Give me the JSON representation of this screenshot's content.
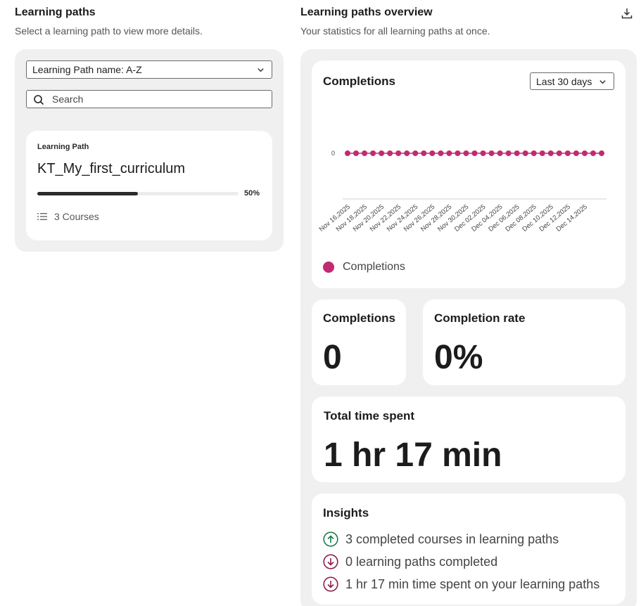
{
  "left": {
    "title": "Learning paths",
    "subtitle": "Select a learning path to view more details.",
    "sort_value": "Learning Path name: A-Z",
    "search_placeholder": "Search",
    "card": {
      "eyebrow": "Learning Path",
      "name": "KT_My_first_curriculum",
      "progress_pct": 50,
      "progress_label": "50%",
      "courses": "3 Courses"
    }
  },
  "right": {
    "title": "Learning paths overview",
    "subtitle": "Your statistics for all learning paths at once.",
    "completions": {
      "title": "Completions",
      "range": "Last 30 days",
      "legend": "Completions"
    },
    "count": {
      "title": "Completions",
      "value": "0"
    },
    "rate": {
      "title": "Completion rate",
      "value": "0%"
    },
    "time": {
      "title": "Total time spent",
      "value": "1 hr 17 min"
    },
    "insights": {
      "title": "Insights",
      "items": [
        {
          "text": "3 completed courses in learning paths",
          "direction": "up",
          "color": "#1d7a4a"
        },
        {
          "text": "0 learning paths completed",
          "direction": "down",
          "color": "#8a1f4e"
        },
        {
          "text": "1 hr 17 min time spent on your learning paths",
          "direction": "down",
          "color": "#8a1f4e"
        }
      ]
    }
  },
  "chart_data": {
    "type": "line",
    "series": [
      {
        "name": "Completions",
        "color": "#c22a71",
        "values": [
          0,
          0,
          0,
          0,
          0,
          0,
          0,
          0,
          0,
          0,
          0,
          0,
          0,
          0,
          0,
          0,
          0,
          0,
          0,
          0,
          0,
          0,
          0,
          0,
          0,
          0,
          0,
          0,
          0,
          0,
          0
        ]
      }
    ],
    "x": [
      "Nov 16,2025",
      "Nov 17,2025",
      "Nov 18,2025",
      "Nov 19,2025",
      "Nov 20,2025",
      "Nov 21,2025",
      "Nov 22,2025",
      "Nov 23,2025",
      "Nov 24,2025",
      "Nov 25,2025",
      "Nov 26,2025",
      "Nov 27,2025",
      "Nov 28,2025",
      "Nov 29,2025",
      "Nov 30,2025",
      "Dec 01,2025",
      "Dec 02,2025",
      "Dec 03,2025",
      "Dec 04,2025",
      "Dec 05,2025",
      "Dec 06,2025",
      "Dec 07,2025",
      "Dec 08,2025",
      "Dec 09,2025",
      "Dec 10,2025",
      "Dec 11,2025",
      "Dec 12,2025",
      "Dec 13,2025",
      "Dec 14,2025",
      "Dec 15,2025",
      "Dec 16,2025"
    ],
    "x_tick_labels": [
      "Nov 16,2025",
      "Nov 18,2025",
      "Nov 20,2025",
      "Nov 22,2025",
      "Nov 24,2025",
      "Nov 26,2025",
      "Nov 28,2025",
      "Nov 30,2025",
      "Dec 02,2025",
      "Dec 04,2025",
      "Dec 06,2025",
      "Dec 08,2025",
      "Dec 10,2025",
      "Dec 12,2025",
      "Dec 14,2025"
    ],
    "y_tick_labels": [
      "0"
    ],
    "legend": "bottom-left",
    "grid": false
  }
}
